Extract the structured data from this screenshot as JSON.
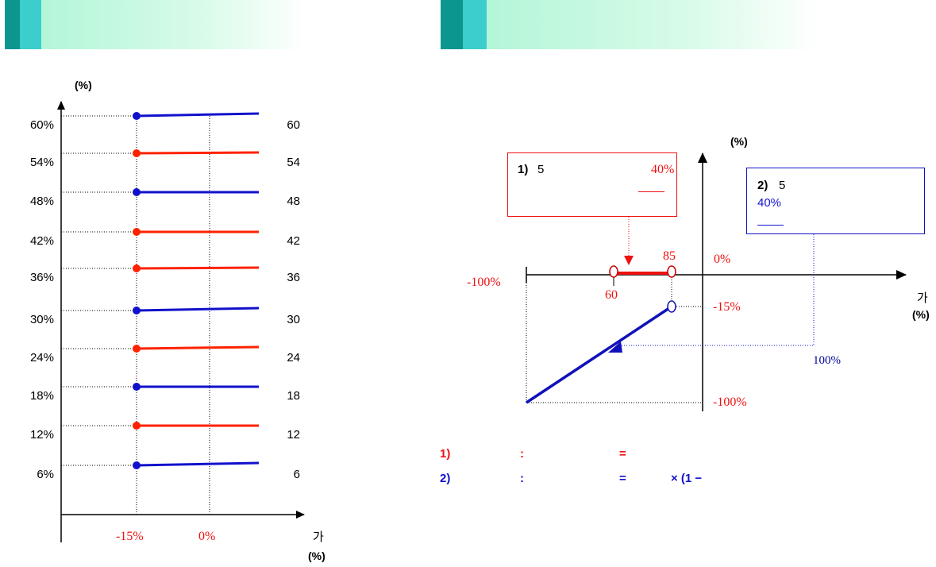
{
  "left_panel": {
    "y_unit": "(%)",
    "x_label": "가",
    "x_unit": "(%)",
    "x_ticks": [
      "-15%",
      "0%"
    ],
    "levels": [
      {
        "left": "60%",
        "right": "60",
        "color": "#1111cc"
      },
      {
        "left": "54%",
        "right": "54",
        "color": "#ff2200"
      },
      {
        "left": "48%",
        "right": "48",
        "color": "#1111cc"
      },
      {
        "left": "42%",
        "right": "42",
        "color": "#ff2200"
      },
      {
        "left": "36%",
        "right": "36",
        "color": "#ff2200"
      },
      {
        "left": "30%",
        "right": "30",
        "color": "#1111cc"
      },
      {
        "left": "24%",
        "right": "24",
        "color": "#ff2200"
      },
      {
        "left": "18%",
        "right": "18",
        "color": "#1111cc"
      },
      {
        "left": "12%",
        "right": "12",
        "color": "#ff2200"
      },
      {
        "left": "6%",
        "right": "6",
        "color": "#1111cc"
      }
    ]
  },
  "right_panel": {
    "y_unit": "(%)",
    "x_label": "가",
    "x_unit": "(%)",
    "box1": {
      "prefix": "1)",
      "num": "5",
      "pct": "40%"
    },
    "box2": {
      "prefix": "2)",
      "num": "5",
      "pct": "40%"
    },
    "labels": {
      "neg100_left": "-100%",
      "p85": "85",
      "zero": "0%",
      "p60": "60",
      "neg15": "-15%",
      "p100": "100%",
      "neg100_bottom": "-100%"
    },
    "formula1": {
      "label": "1)",
      "colon": ":",
      "eq": "="
    },
    "formula2": {
      "label": "2)",
      "colon": ":",
      "eq": "=",
      "tail": "× (1 −"
    }
  },
  "colors": {
    "red": "#ff2200",
    "blue": "#1111cc",
    "header_dark": "#0d9690",
    "header_light": "#3ccdcd"
  }
}
